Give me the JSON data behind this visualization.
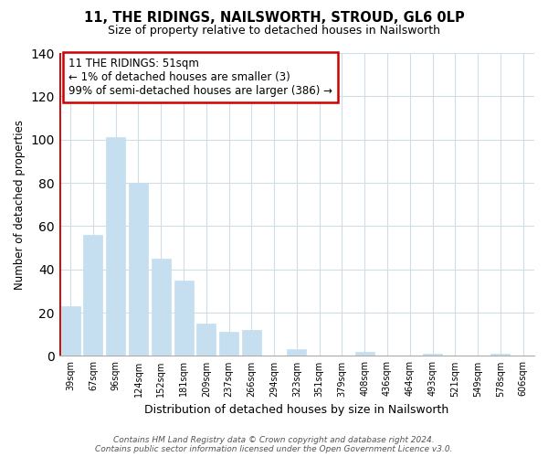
{
  "title": "11, THE RIDINGS, NAILSWORTH, STROUD, GL6 0LP",
  "subtitle": "Size of property relative to detached houses in Nailsworth",
  "xlabel": "Distribution of detached houses by size in Nailsworth",
  "ylabel": "Number of detached properties",
  "categories": [
    "39sqm",
    "67sqm",
    "96sqm",
    "124sqm",
    "152sqm",
    "181sqm",
    "209sqm",
    "237sqm",
    "266sqm",
    "294sqm",
    "323sqm",
    "351sqm",
    "379sqm",
    "408sqm",
    "436sqm",
    "464sqm",
    "493sqm",
    "521sqm",
    "549sqm",
    "578sqm",
    "606sqm"
  ],
  "values": [
    23,
    56,
    101,
    80,
    45,
    35,
    15,
    11,
    12,
    0,
    3,
    0,
    0,
    2,
    0,
    0,
    1,
    0,
    0,
    1,
    0
  ],
  "bar_color": "#c5dff0",
  "ylim": [
    0,
    140
  ],
  "yticks": [
    0,
    20,
    40,
    60,
    80,
    100,
    120,
    140
  ],
  "annotation_text": "11 THE RIDINGS: 51sqm\n← 1% of detached houses are smaller (3)\n99% of semi-detached houses are larger (386) →",
  "annotation_box_color": "#ffffff",
  "annotation_box_edgecolor": "#cc0000",
  "red_vline_x": -0.5,
  "footer_line1": "Contains HM Land Registry data © Crown copyright and database right 2024.",
  "footer_line2": "Contains public sector information licensed under the Open Government Licence v3.0.",
  "background_color": "#ffffff",
  "grid_color": "#d0dce8"
}
